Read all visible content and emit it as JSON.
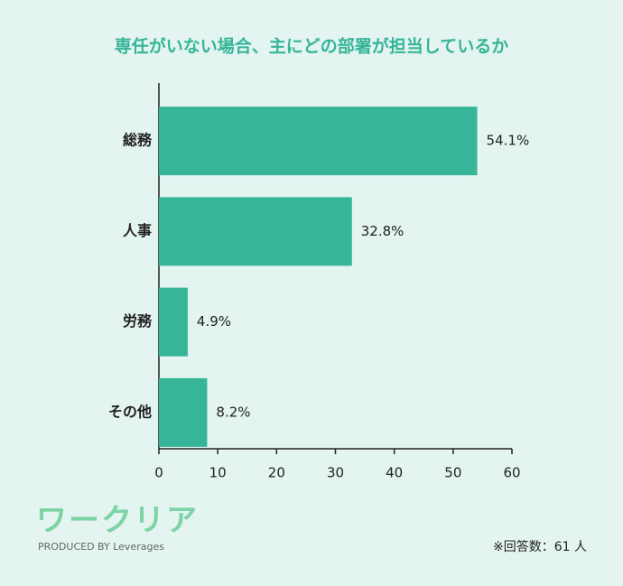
{
  "chart_data": {
    "type": "bar",
    "orientation": "horizontal",
    "title": "専任がいない場合、主にどの部署が担当しているか",
    "categories": [
      "総務",
      "人事",
      "労務",
      "その他"
    ],
    "values": [
      54.1,
      32.8,
      4.9,
      8.2
    ],
    "value_labels": [
      "54.1%",
      "32.8%",
      "4.9%",
      "8.2%"
    ],
    "color": "#36b598",
    "xlim": [
      0,
      60
    ],
    "xticks": [
      0,
      10,
      20,
      30,
      40,
      50,
      60
    ],
    "grid": false,
    "note": "※回答数：61 人",
    "logo": "ワークリア",
    "logo_sub": "PRODUCED BY Leverages"
  }
}
